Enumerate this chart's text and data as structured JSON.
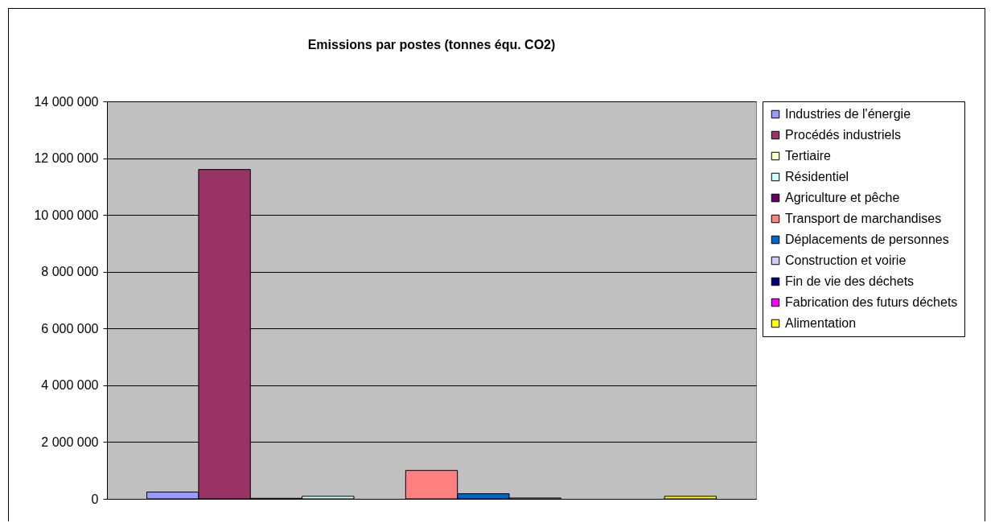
{
  "chart_data": {
    "type": "bar",
    "title": "Emissions par postes (tonnes équ. CO2)",
    "categories": [
      null
    ],
    "series": [
      {
        "name": "Industries de l'énergie",
        "color": "#9999ff",
        "values": [
          240000
        ]
      },
      {
        "name": "Procédés industriels",
        "color": "#993366",
        "values": [
          11600000
        ]
      },
      {
        "name": "Tertiaire",
        "color": "#ffffcc",
        "values": [
          20000
        ]
      },
      {
        "name": "Résidentiel",
        "color": "#ccffff",
        "values": [
          90000
        ]
      },
      {
        "name": "Agriculture et pêche",
        "color": "#660066",
        "values": [
          null
        ]
      },
      {
        "name": "Transport de marchandises",
        "color": "#ff8080",
        "values": [
          1000000
        ]
      },
      {
        "name": "Déplacements de personnes",
        "color": "#0066cc",
        "values": [
          180000
        ]
      },
      {
        "name": "Construction et voirie",
        "color": "#ccccff",
        "values": [
          30000
        ]
      },
      {
        "name": "Fin de vie des déchets",
        "color": "#000080",
        "values": [
          null
        ]
      },
      {
        "name": "Fabrication des futurs déchets",
        "color": "#ff00ff",
        "values": [
          null
        ]
      },
      {
        "name": "Alimentation",
        "color": "#ffff00",
        "values": [
          90000
        ]
      }
    ],
    "ylim": [
      0,
      14000000
    ],
    "yticks": [
      0,
      2000000,
      4000000,
      6000000,
      8000000,
      10000000,
      12000000,
      14000000
    ],
    "grid": "y",
    "legend": "right",
    "tick_labels": "y"
  }
}
